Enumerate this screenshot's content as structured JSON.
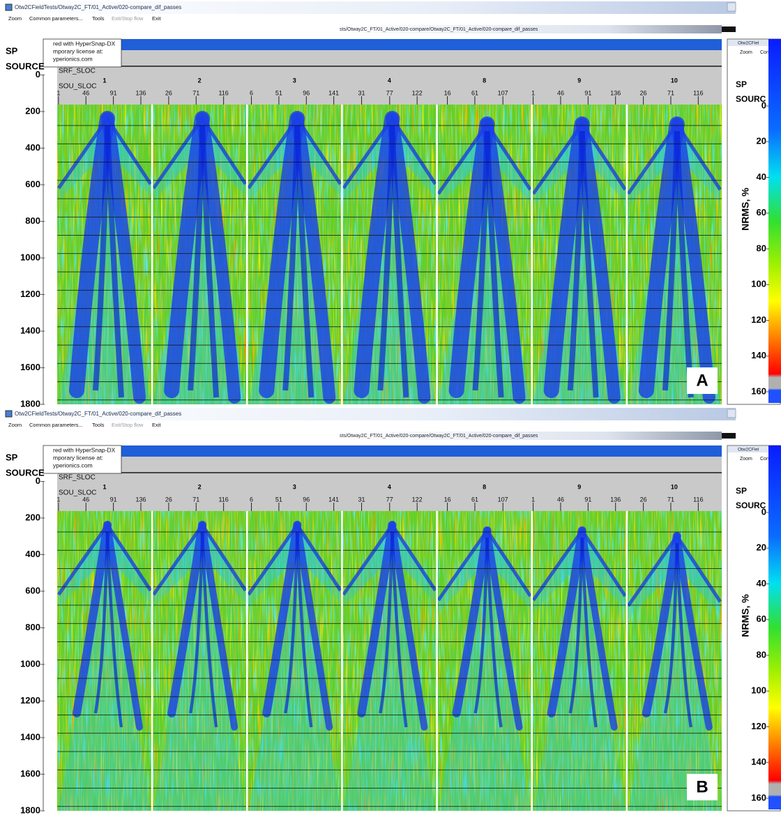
{
  "panels": [
    {
      "window_title": "Otw2CFieldTests/Otway2C_FT/01_Active/020-compare_dif_passes",
      "menu": [
        "Zoom",
        "Common parameters...",
        "Tools",
        "Exit/Stop flow",
        "Exit"
      ],
      "path_text": "sts/Otway2C_FT/01_Active/020-compare/Otway2C_FT/01_Active/020-compare_dif_passes",
      "watermark": [
        "red with HyperSnap-DX",
        "mporary license at:",
        "yperionics.com"
      ],
      "axis_label": [
        "SP",
        "SOURCE"
      ],
      "yticks": [
        0,
        200,
        400,
        600,
        800,
        1000,
        1200,
        1400,
        1600,
        1800
      ],
      "header_labels": [
        "SRF_SLOC",
        "SOU_SLOC"
      ],
      "gathers": [
        {
          "srf_sloc": 1,
          "sou_sloc": [
            1,
            46,
            91,
            136
          ]
        },
        {
          "srf_sloc": 2,
          "sou_sloc": [
            26,
            71,
            116
          ]
        },
        {
          "srf_sloc": 3,
          "sou_sloc": [
            6,
            51,
            96,
            141
          ]
        },
        {
          "srf_sloc": 4,
          "sou_sloc": [
            31,
            77,
            122
          ]
        },
        {
          "srf_sloc": 8,
          "sou_sloc": [
            16,
            61,
            107
          ]
        },
        {
          "srf_sloc": 9,
          "sou_sloc": [
            1,
            46,
            91,
            136
          ]
        },
        {
          "srf_sloc": 10,
          "sou_sloc": [
            26,
            71,
            116
          ]
        }
      ],
      "colorbar": {
        "window_title": "Otw2CFiel",
        "menu": [
          "Zoom",
          "Con"
        ],
        "axis_label": [
          "SP",
          "SOURC"
        ],
        "title": "NRMS, %",
        "ticks": [
          0,
          20,
          40,
          60,
          80,
          100,
          120,
          140,
          160
        ]
      },
      "label": "A"
    },
    {
      "window_title": "Otw2CFieldTests/Otway2C_FT/01_Active/020-compare_dif_passes",
      "menu": [
        "Zoom",
        "Common parameters...",
        "Tools",
        "Exit/Stop flow",
        "Exit"
      ],
      "path_text": "sts/Otway2C_FT/01_Active/020-compare/Otway2C_FT/01_Active/020-compare_dif_passes",
      "watermark": [
        "red with HyperSnap-DX",
        "mporary license at:",
        "yperionics.com"
      ],
      "axis_label": [
        "SP",
        "SOURCE"
      ],
      "yticks": [
        0,
        200,
        400,
        600,
        800,
        1000,
        1200,
        1400,
        1600,
        1800
      ],
      "header_labels": [
        "SRF_SLOC",
        "SOU_SLOC"
      ],
      "gathers": [
        {
          "srf_sloc": 1,
          "sou_sloc": [
            1,
            46,
            91,
            136
          ]
        },
        {
          "srf_sloc": 2,
          "sou_sloc": [
            26,
            71,
            116
          ]
        },
        {
          "srf_sloc": 3,
          "sou_sloc": [
            6,
            51,
            96,
            141
          ]
        },
        {
          "srf_sloc": 4,
          "sou_sloc": [
            31,
            77,
            122
          ]
        },
        {
          "srf_sloc": 8,
          "sou_sloc": [
            16,
            61,
            107
          ]
        },
        {
          "srf_sloc": 9,
          "sou_sloc": [
            1,
            46,
            91,
            136
          ]
        },
        {
          "srf_sloc": 10,
          "sou_sloc": [
            26,
            71,
            116
          ]
        }
      ],
      "colorbar": {
        "window_title": "Otw2CFiel",
        "menu": [
          "Zoom",
          "Con"
        ],
        "axis_label": [
          "SP",
          "SOURC"
        ],
        "title": "NRMS, %",
        "ticks": [
          0,
          20,
          40,
          60,
          80,
          100,
          120,
          140,
          160
        ]
      },
      "label": "B"
    }
  ]
}
